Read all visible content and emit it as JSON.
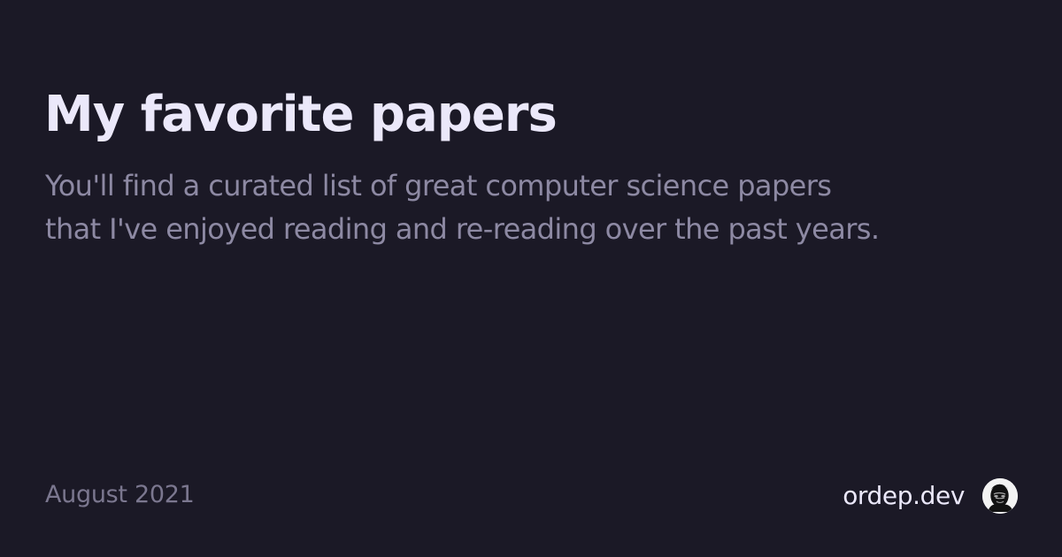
{
  "card": {
    "title": "My favorite papers",
    "description": "You'll find a curated list of great computer science papers that I've enjoyed reading and re-reading over the past years.",
    "date": "August 2021",
    "site": "ordep.dev",
    "avatar_icon": "author-avatar"
  },
  "colors": {
    "background": "#1b1926",
    "title": "#ebe8fa",
    "description": "#8d89a3",
    "date": "#7b778f"
  }
}
